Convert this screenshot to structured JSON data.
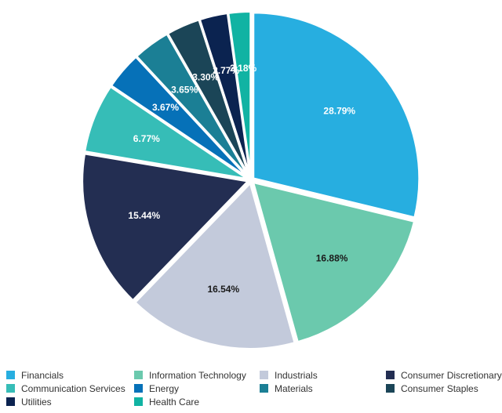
{
  "chart_data": {
    "type": "pie",
    "title": "",
    "categories": [
      "Financials",
      "Information Technology",
      "Industrials",
      "Consumer Discretionary",
      "Communication Services",
      "Energy",
      "Materials",
      "Consumer Staples",
      "Utilities",
      "Health Care"
    ],
    "values": [
      28.79,
      16.88,
      16.54,
      15.44,
      6.77,
      3.67,
      3.65,
      3.3,
      2.77,
      2.18
    ],
    "labels": [
      "28.79%",
      "16.88%",
      "16.54%",
      "15.44%",
      "6.77%",
      "3.67%",
      "3.65%",
      "3.30%",
      "2.77%",
      "2.18%"
    ],
    "colors": [
      "#27aee0",
      "#6bc9ad",
      "#c3cadb",
      "#232e52",
      "#36bdb7",
      "#0671b8",
      "#1b7f95",
      "#1b4557",
      "#0b2350",
      "#11b3a3"
    ],
    "legend_position": "bottom"
  }
}
